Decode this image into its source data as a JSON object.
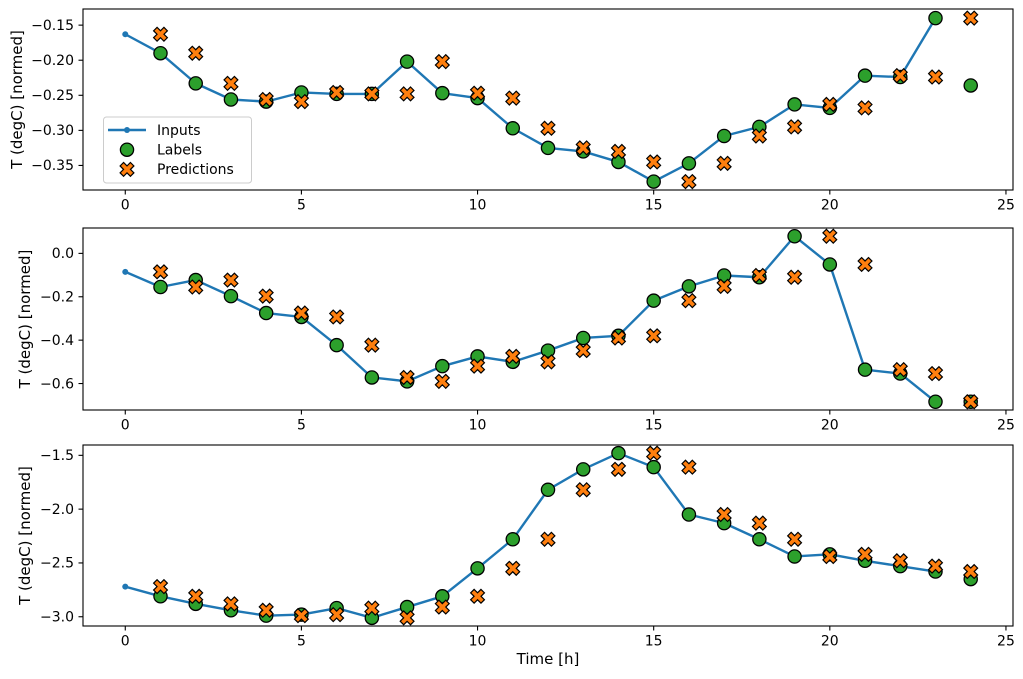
{
  "figure": {
    "background_color": "#ffffff",
    "xlabel": "Time [h]",
    "ylabel": "T (degC) [normed]",
    "legend": {
      "location": "center left of top subplot",
      "border_color": "#cccccc",
      "entries": [
        {
          "label": "Inputs",
          "marker": "line-dot",
          "color": "#1f77b4"
        },
        {
          "label": "Labels",
          "marker": "circle",
          "color": "#2ca02c",
          "edge_color": "#000000"
        },
        {
          "label": "Predictions",
          "marker": "x",
          "color": "#ff7f0e",
          "edge_color": "#000000"
        }
      ]
    }
  },
  "chart_data": [
    {
      "type": "line",
      "subplot": "top",
      "ylabel": "T (degC) [normed]",
      "xlabel": "",
      "grid": false,
      "xlim": [
        -1.2,
        25.2
      ],
      "ylim": [
        -0.385,
        -0.127
      ],
      "xticks": [
        0,
        5,
        10,
        15,
        20,
        25
      ],
      "xtick_labels": [
        "0",
        "5",
        "10",
        "15",
        "20",
        "25"
      ],
      "yticks": [
        -0.15,
        -0.2,
        -0.25,
        -0.3,
        -0.35
      ],
      "ytick_labels": [
        "−0.15",
        "−0.20",
        "−0.25",
        "−0.30",
        "−0.35"
      ],
      "series": [
        {
          "name": "Inputs",
          "marker": "line-dot",
          "color": "#1f77b4",
          "x": [
            0,
            1,
            2,
            3,
            4,
            5,
            6,
            7,
            8,
            9,
            10,
            11,
            12,
            13,
            14,
            15,
            16,
            17,
            18,
            19,
            20,
            21,
            22,
            23
          ],
          "y": [
            -0.163,
            -0.19,
            -0.233,
            -0.256,
            -0.259,
            -0.246,
            -0.248,
            -0.248,
            -0.202,
            -0.247,
            -0.254,
            -0.297,
            -0.325,
            -0.33,
            -0.345,
            -0.373,
            -0.347,
            -0.308,
            -0.295,
            -0.263,
            -0.268,
            -0.222,
            -0.224,
            -0.14
          ]
        },
        {
          "name": "Labels",
          "marker": "circle",
          "color": "#2ca02c",
          "edge_color": "#000000",
          "x": [
            1,
            2,
            3,
            4,
            5,
            6,
            7,
            8,
            9,
            10,
            11,
            12,
            13,
            14,
            15,
            16,
            17,
            18,
            19,
            20,
            21,
            22,
            23,
            24
          ],
          "y": [
            -0.19,
            -0.233,
            -0.256,
            -0.259,
            -0.246,
            -0.248,
            -0.248,
            -0.202,
            -0.247,
            -0.254,
            -0.297,
            -0.325,
            -0.33,
            -0.345,
            -0.373,
            -0.347,
            -0.308,
            -0.295,
            -0.263,
            -0.268,
            -0.222,
            -0.224,
            -0.14,
            -0.236
          ]
        },
        {
          "name": "Predictions",
          "marker": "x",
          "color": "#ff7f0e",
          "edge_color": "#000000",
          "x": [
            1,
            2,
            3,
            4,
            5,
            6,
            7,
            8,
            9,
            10,
            11,
            12,
            13,
            14,
            15,
            16,
            17,
            18,
            19,
            20,
            21,
            22,
            23,
            24
          ],
          "y": [
            -0.163,
            -0.19,
            -0.233,
            -0.256,
            -0.259,
            -0.246,
            -0.248,
            -0.248,
            -0.202,
            -0.247,
            -0.254,
            -0.297,
            -0.325,
            -0.33,
            -0.345,
            -0.373,
            -0.347,
            -0.308,
            -0.295,
            -0.263,
            -0.268,
            -0.222,
            -0.224,
            -0.14
          ]
        }
      ]
    },
    {
      "type": "line",
      "subplot": "middle",
      "ylabel": "T (degC) [normed]",
      "xlabel": "",
      "grid": false,
      "xlim": [
        -1.2,
        25.2
      ],
      "ylim": [
        -0.722,
        0.117
      ],
      "xticks": [
        0,
        5,
        10,
        15,
        20,
        25
      ],
      "xtick_labels": [
        "0",
        "5",
        "10",
        "15",
        "20",
        "25"
      ],
      "yticks": [
        0.0,
        -0.2,
        -0.4,
        -0.6
      ],
      "ytick_labels": [
        "0.0",
        "−0.2",
        "−0.4",
        "−0.6"
      ],
      "series": [
        {
          "name": "Inputs",
          "marker": "line-dot",
          "color": "#1f77b4",
          "x": [
            0,
            1,
            2,
            3,
            4,
            5,
            6,
            7,
            8,
            9,
            10,
            11,
            12,
            13,
            14,
            15,
            16,
            17,
            18,
            19,
            20,
            21,
            22,
            23
          ],
          "y": [
            -0.085,
            -0.155,
            -0.123,
            -0.197,
            -0.275,
            -0.293,
            -0.423,
            -0.572,
            -0.59,
            -0.52,
            -0.475,
            -0.5,
            -0.448,
            -0.39,
            -0.38,
            -0.218,
            -0.152,
            -0.102,
            -0.11,
            0.079,
            -0.051,
            -0.536,
            -0.554,
            -0.684
          ]
        },
        {
          "name": "Labels",
          "marker": "circle",
          "color": "#2ca02c",
          "edge_color": "#000000",
          "x": [
            1,
            2,
            3,
            4,
            5,
            6,
            7,
            8,
            9,
            10,
            11,
            12,
            13,
            14,
            15,
            16,
            17,
            18,
            19,
            20,
            21,
            22,
            23,
            24
          ],
          "y": [
            -0.155,
            -0.123,
            -0.197,
            -0.275,
            -0.293,
            -0.423,
            -0.572,
            -0.59,
            -0.52,
            -0.475,
            -0.5,
            -0.448,
            -0.39,
            -0.38,
            -0.218,
            -0.152,
            -0.102,
            -0.11,
            0.079,
            -0.051,
            -0.536,
            -0.554,
            -0.684,
            -0.684
          ]
        },
        {
          "name": "Predictions",
          "marker": "x",
          "color": "#ff7f0e",
          "edge_color": "#000000",
          "x": [
            1,
            2,
            3,
            4,
            5,
            6,
            7,
            8,
            9,
            10,
            11,
            12,
            13,
            14,
            15,
            16,
            17,
            18,
            19,
            20,
            21,
            22,
            23,
            24
          ],
          "y": [
            -0.085,
            -0.155,
            -0.123,
            -0.197,
            -0.275,
            -0.293,
            -0.423,
            -0.572,
            -0.59,
            -0.52,
            -0.475,
            -0.5,
            -0.448,
            -0.39,
            -0.38,
            -0.218,
            -0.152,
            -0.102,
            -0.11,
            0.079,
            -0.051,
            -0.536,
            -0.554,
            -0.684
          ]
        }
      ]
    },
    {
      "type": "line",
      "subplot": "bottom",
      "ylabel": "T (degC) [normed]",
      "xlabel": "Time [h]",
      "grid": false,
      "xlim": [
        -1.2,
        25.2
      ],
      "ylim": [
        -3.086,
        -1.404
      ],
      "xticks": [
        0,
        5,
        10,
        15,
        20,
        25
      ],
      "xtick_labels": [
        "0",
        "5",
        "10",
        "15",
        "20",
        "25"
      ],
      "yticks": [
        -1.5,
        -2.0,
        -2.5,
        -3.0
      ],
      "ytick_labels": [
        "−1.5",
        "−2.0",
        "−2.5",
        "−3.0"
      ],
      "series": [
        {
          "name": "Inputs",
          "marker": "line-dot",
          "color": "#1f77b4",
          "x": [
            0,
            1,
            2,
            3,
            4,
            5,
            6,
            7,
            8,
            9,
            10,
            11,
            12,
            13,
            14,
            15,
            16,
            17,
            18,
            19,
            20,
            21,
            22,
            23
          ],
          "y": [
            -2.72,
            -2.81,
            -2.88,
            -2.94,
            -2.99,
            -2.98,
            -2.92,
            -3.01,
            -2.91,
            -2.81,
            -2.55,
            -2.28,
            -1.82,
            -1.63,
            -1.48,
            -1.61,
            -2.05,
            -2.13,
            -2.28,
            -2.44,
            -2.42,
            -2.48,
            -2.53,
            -2.58
          ]
        },
        {
          "name": "Labels",
          "marker": "circle",
          "color": "#2ca02c",
          "edge_color": "#000000",
          "x": [
            1,
            2,
            3,
            4,
            5,
            6,
            7,
            8,
            9,
            10,
            11,
            12,
            13,
            14,
            15,
            16,
            17,
            18,
            19,
            20,
            21,
            22,
            23,
            24
          ],
          "y": [
            -2.81,
            -2.88,
            -2.94,
            -2.99,
            -2.98,
            -2.92,
            -3.01,
            -2.91,
            -2.81,
            -2.55,
            -2.28,
            -1.82,
            -1.63,
            -1.48,
            -1.61,
            -2.05,
            -2.13,
            -2.28,
            -2.44,
            -2.42,
            -2.48,
            -2.53,
            -2.58,
            -2.65
          ]
        },
        {
          "name": "Predictions",
          "marker": "x",
          "color": "#ff7f0e",
          "edge_color": "#000000",
          "x": [
            1,
            2,
            3,
            4,
            5,
            6,
            7,
            8,
            9,
            10,
            11,
            12,
            13,
            14,
            15,
            16,
            17,
            18,
            19,
            20,
            21,
            22,
            23,
            24
          ],
          "y": [
            -2.72,
            -2.81,
            -2.88,
            -2.94,
            -2.99,
            -2.98,
            -2.92,
            -3.01,
            -2.91,
            -2.81,
            -2.55,
            -2.28,
            -1.82,
            -1.63,
            -1.48,
            -1.61,
            -2.05,
            -2.13,
            -2.28,
            -2.44,
            -2.42,
            -2.48,
            -2.53,
            -2.58
          ]
        }
      ]
    }
  ]
}
